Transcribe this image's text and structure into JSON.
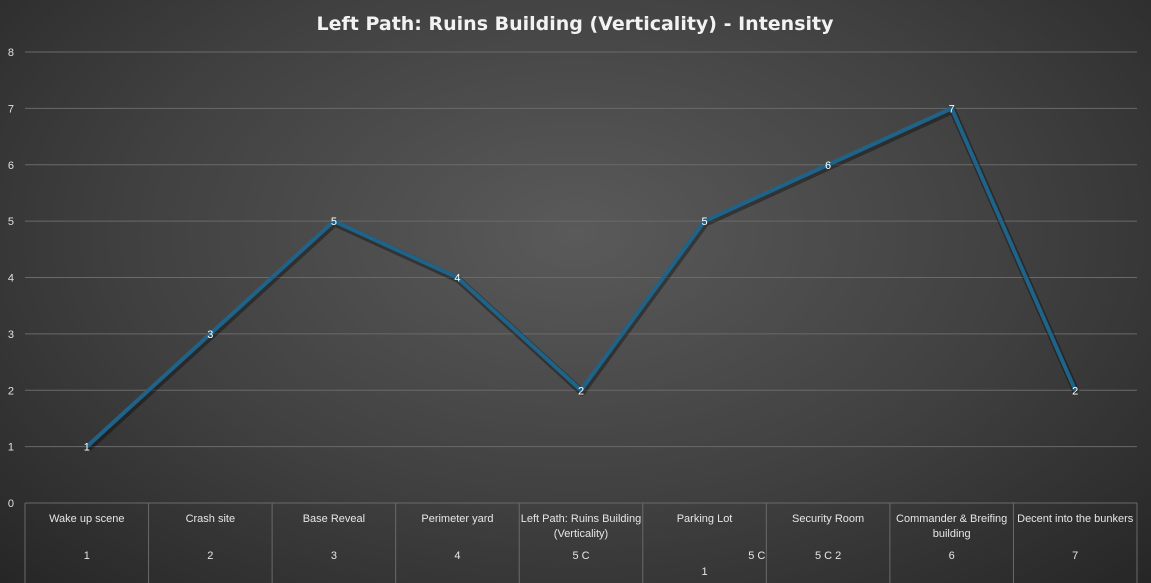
{
  "chart_data": {
    "type": "line",
    "title": "Left Path: Ruins Building (Verticality) - Intensity",
    "ylim": [
      0,
      8
    ],
    "yticks": [
      0,
      1,
      2,
      3,
      4,
      5,
      6,
      7,
      8
    ],
    "grid": true,
    "legend": "none",
    "series_color": "#1f6388",
    "categories": [
      {
        "label": [
          "Wake up scene"
        ],
        "sub": [
          [
            "1"
          ]
        ]
      },
      {
        "label": [
          "Crash site"
        ],
        "sub": [
          [
            "2"
          ]
        ]
      },
      {
        "label": [
          "Base Reveal"
        ],
        "sub": [
          [
            "3"
          ]
        ]
      },
      {
        "label": [
          "Perimeter yard"
        ],
        "sub": [
          [
            "4"
          ]
        ]
      },
      {
        "label": [
          "Left Path: Ruins Building",
          "(Verticality)"
        ],
        "sub": [
          [
            "5 C"
          ]
        ]
      },
      {
        "label": [
          "Parking Lot"
        ],
        "sub": [
          [
            "5 C",
            "right"
          ],
          [
            "1",
            "center-low"
          ]
        ]
      },
      {
        "label": [
          "Security Room"
        ],
        "sub": [
          [
            "5 C 2"
          ]
        ]
      },
      {
        "label": [
          "Commander & Breifing",
          "building"
        ],
        "sub": [
          [
            "6"
          ]
        ]
      },
      {
        "label": [
          "Decent into the bunkers"
        ],
        "sub": [
          [
            "7"
          ]
        ]
      }
    ],
    "series": [
      {
        "values": [
          1,
          3,
          5,
          4,
          2,
          5,
          6,
          7,
          2
        ]
      }
    ]
  }
}
